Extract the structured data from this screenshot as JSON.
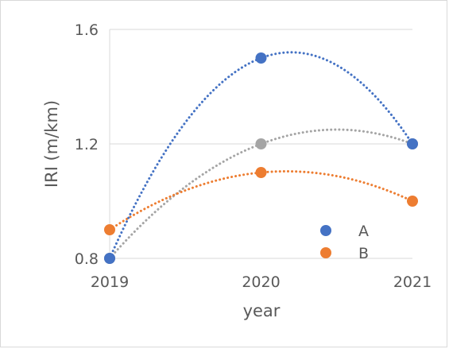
{
  "chart_data": {
    "type": "scatter",
    "xlabel": "year",
    "ylabel": "IRI (m/km)",
    "x_ticks": [
      "2019",
      "2020",
      "2021"
    ],
    "y_ticks": [
      "0.8",
      "1.2",
      "1.6"
    ],
    "xlim": [
      2019,
      2021
    ],
    "ylim": [
      0.8,
      1.6
    ],
    "grid": "horizontal",
    "legend_position": "bottom-right",
    "trendlines": "dotted polynomial (order 2)",
    "series": [
      {
        "name": "A",
        "color": "#4472C4",
        "x": [
          2019,
          2020,
          2021
        ],
        "y": [
          0.8,
          1.5,
          1.2
        ]
      },
      {
        "name": "B",
        "color": "#ED7D31",
        "x": [
          2019,
          2020,
          2021
        ],
        "y": [
          0.9,
          1.1,
          1.0
        ]
      },
      {
        "name": "",
        "color": "#A5A5A5",
        "x": [
          2019,
          2020,
          2021
        ],
        "y": [
          0.8,
          1.2,
          1.2
        ]
      }
    ]
  }
}
